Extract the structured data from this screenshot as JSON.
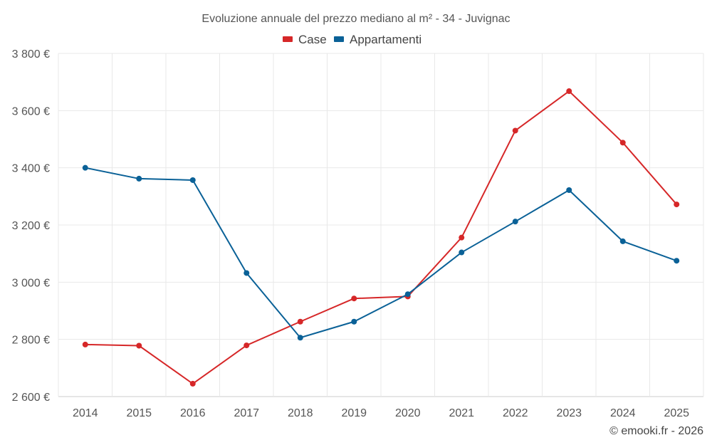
{
  "chart_data": {
    "type": "line",
    "title": "Evoluzione annuale del prezzo mediano al m² - 34 - Juvignac",
    "categories": [
      "2014",
      "2015",
      "2016",
      "2017",
      "2018",
      "2019",
      "2020",
      "2021",
      "2022",
      "2023",
      "2024",
      "2025"
    ],
    "series": [
      {
        "name": "Case",
        "color": "#d62728",
        "values": [
          2782,
          2778,
          2645,
          2779,
          2862,
          2943,
          2950,
          3156,
          3530,
          3668,
          3488,
          3272
        ]
      },
      {
        "name": "Appartamenti",
        "color": "#0a6197",
        "values": [
          3400,
          3362,
          3357,
          3032,
          2806,
          2862,
          2958,
          3104,
          3212,
          3322,
          3143,
          3075
        ]
      }
    ],
    "ylim": [
      2600,
      3800
    ],
    "yticks": [
      2600,
      2800,
      3000,
      3200,
      3400,
      3600,
      3800
    ],
    "ytick_labels": [
      "2 600 €",
      "2 800 €",
      "3 000 €",
      "3 200 €",
      "3 400 €",
      "3 600 €",
      "3 800 €"
    ],
    "xlabel": "",
    "ylabel": "",
    "legend_position": "top-center",
    "grid": true
  },
  "credit": "© emooki.fr - 2026"
}
